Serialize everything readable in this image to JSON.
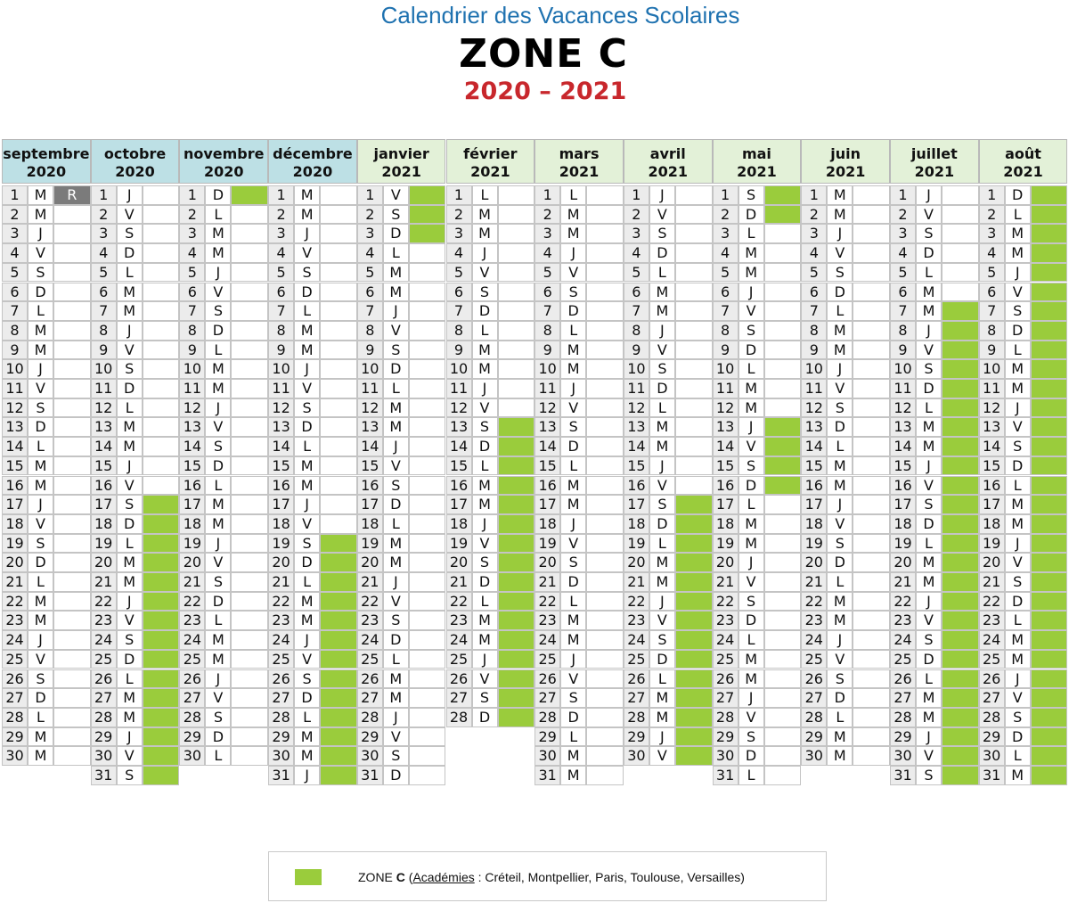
{
  "header": {
    "title": "Calendrier des Vacances Scolaires",
    "zone": "ZONE C",
    "years": "2020 – 2021"
  },
  "colors": {
    "title": "#1f72b0",
    "years": "#c8272c",
    "holiday": "#9acc3c",
    "return_day": "#7b7b7b",
    "header_2020": "#bde0e5",
    "header_2021": "#e3f1d8"
  },
  "months": [
    {
      "name": "septembre",
      "year": "2020",
      "days": 30,
      "first_weekday": 1,
      "holidays": [],
      "special": {
        "1": "R"
      }
    },
    {
      "name": "octobre",
      "year": "2020",
      "days": 31,
      "first_weekday": 3,
      "holidays": [
        17,
        18,
        19,
        20,
        21,
        22,
        23,
        24,
        25,
        26,
        27,
        28,
        29,
        30,
        31
      ]
    },
    {
      "name": "novembre",
      "year": "2020",
      "days": 30,
      "first_weekday": 6,
      "holidays": [
        1
      ]
    },
    {
      "name": "décembre",
      "year": "2020",
      "days": 31,
      "first_weekday": 1,
      "holidays": [
        19,
        20,
        21,
        22,
        23,
        24,
        25,
        26,
        27,
        28,
        29,
        30,
        31
      ]
    },
    {
      "name": "janvier",
      "year": "2021",
      "days": 31,
      "first_weekday": 4,
      "holidays": [
        1,
        2,
        3
      ]
    },
    {
      "name": "février",
      "year": "2021",
      "days": 28,
      "first_weekday": 0,
      "holidays": [
        13,
        14,
        15,
        16,
        17,
        18,
        19,
        20,
        21,
        22,
        23,
        24,
        25,
        26,
        27,
        28
      ]
    },
    {
      "name": "mars",
      "year": "2021",
      "days": 31,
      "first_weekday": 0,
      "holidays": []
    },
    {
      "name": "avril",
      "year": "2021",
      "days": 30,
      "first_weekday": 3,
      "holidays": [
        17,
        18,
        19,
        20,
        21,
        22,
        23,
        24,
        25,
        26,
        27,
        28,
        29,
        30
      ]
    },
    {
      "name": "mai",
      "year": "2021",
      "days": 31,
      "first_weekday": 5,
      "holidays": [
        1,
        2,
        13,
        14,
        15,
        16
      ]
    },
    {
      "name": "juin",
      "year": "2021",
      "days": 30,
      "first_weekday": 1,
      "holidays": []
    },
    {
      "name": "juillet",
      "year": "2021",
      "days": 31,
      "first_weekday": 3,
      "holidays": [
        7,
        8,
        9,
        10,
        11,
        12,
        13,
        14,
        15,
        16,
        17,
        18,
        19,
        20,
        21,
        22,
        23,
        24,
        25,
        26,
        27,
        28,
        29,
        30,
        31
      ]
    },
    {
      "name": "août",
      "year": "2021",
      "days": 31,
      "first_weekday": 6,
      "holidays": [
        1,
        2,
        3,
        4,
        5,
        6,
        7,
        8,
        9,
        10,
        11,
        12,
        13,
        14,
        15,
        16,
        17,
        18,
        19,
        20,
        21,
        22,
        23,
        24,
        25,
        26,
        27,
        28,
        29,
        30,
        31
      ]
    }
  ],
  "weekday_letters": [
    "L",
    "M",
    "M",
    "J",
    "V",
    "S",
    "D"
  ],
  "legend": {
    "zone_prefix": "ZONE ",
    "zone_letter": "C",
    "open": " (",
    "academies_label": "Académies",
    "academies_list": " : Créteil, Montpellier, Paris, Toulouse, Versailles)"
  }
}
